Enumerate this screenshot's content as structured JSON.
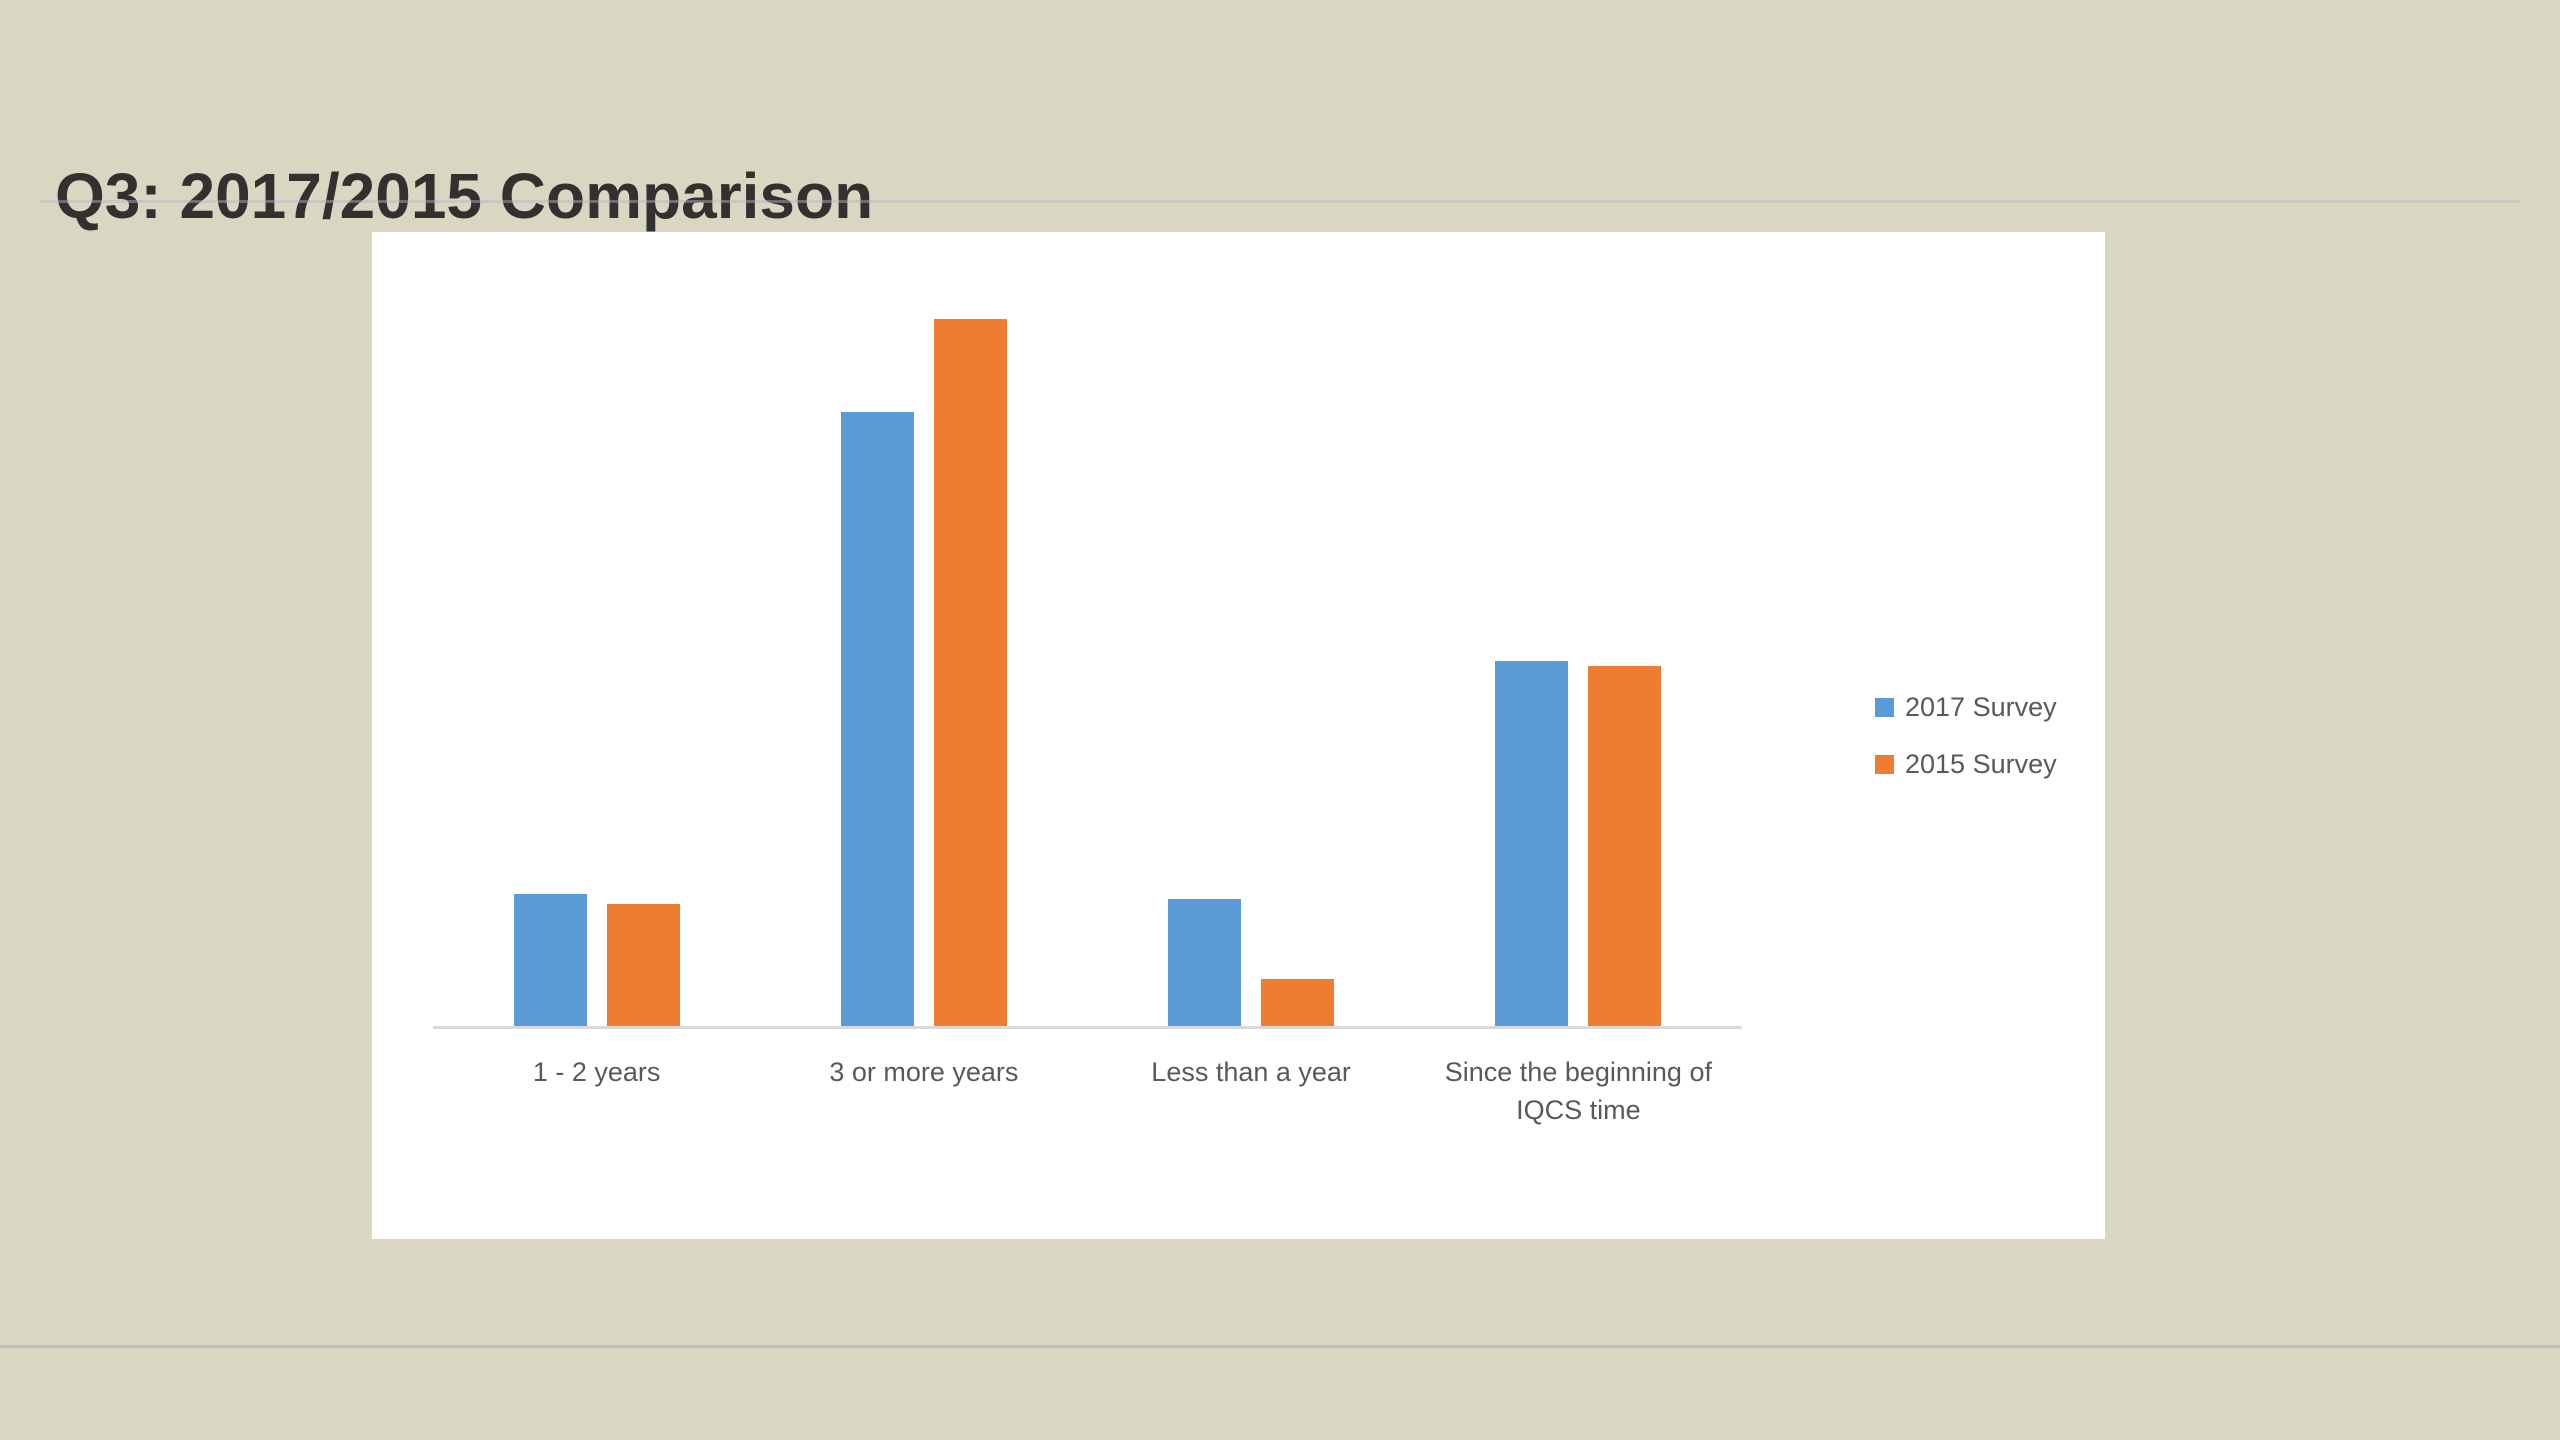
{
  "slide": {
    "title": "Q3: 2017/2015 Comparison"
  },
  "chart_data": {
    "type": "bar",
    "title": "",
    "xlabel": "",
    "ylabel": "",
    "categories": [
      "1 - 2 years",
      "3 or more years",
      "Less than a year",
      "Since the beginning of IQCS time"
    ],
    "series": [
      {
        "name": "2017 Survey",
        "color": "#5B9BD5",
        "values": [
          10.7,
          49.6,
          10.3,
          29.5
        ]
      },
      {
        "name": "2015 Survey",
        "color": "#ED7D31",
        "values": [
          9.9,
          57.1,
          3.9,
          29.1
        ]
      }
    ],
    "ylim": [
      0,
      60
    ],
    "value_axis": "hidden",
    "grid": false,
    "legend_position": "right",
    "colors": {
      "background": "#D9D7C1",
      "plot_background": "#FFFFFF",
      "axis_line": "#D9D9D9",
      "label_text": "#595959",
      "title_text": "#333130"
    }
  }
}
